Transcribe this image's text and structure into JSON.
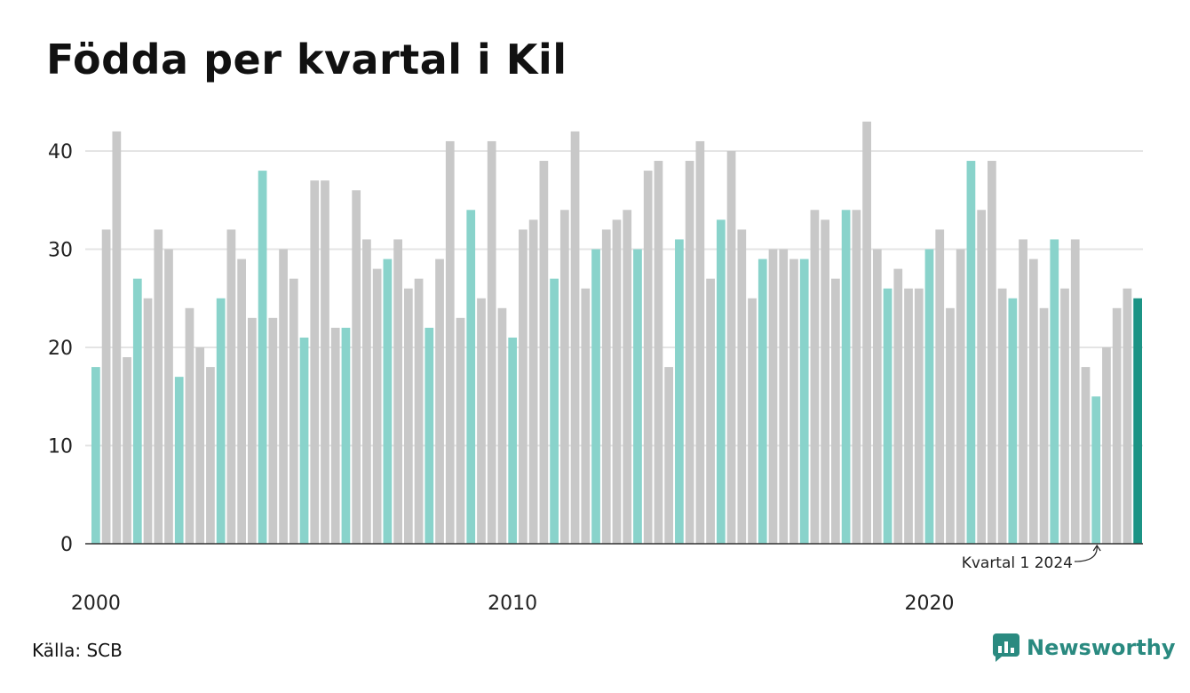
{
  "title": "Födda per kvartal i Kil",
  "source": "Källa: SCB",
  "brand": {
    "name": "Newsworthy",
    "icon": "newsworthy-logo-icon"
  },
  "colors": {
    "q1": "#89d3cb",
    "other": "#c8c8c8",
    "latest": "#1c9485",
    "brand": "#2a8a80"
  },
  "chart_data": {
    "type": "bar",
    "title": "Födda per kvartal i Kil",
    "xlabel": "",
    "ylabel": "",
    "ylim": [
      0,
      43
    ],
    "yticks": [
      0,
      10,
      20,
      30,
      40
    ],
    "xtick_labels": [
      {
        "label": "2000",
        "at_index": 0
      },
      {
        "label": "2010",
        "at_index": 40
      },
      {
        "label": "2020",
        "at_index": 80
      }
    ],
    "grid": true,
    "start_year": 2000,
    "start_quarter": 1,
    "annotation": {
      "text": "Kvartal 1 2024",
      "target_index": 96
    },
    "values": [
      18,
      32,
      42,
      19,
      27,
      25,
      32,
      30,
      17,
      24,
      20,
      18,
      25,
      32,
      29,
      23,
      38,
      23,
      30,
      27,
      21,
      37,
      37,
      22,
      22,
      36,
      31,
      28,
      29,
      31,
      26,
      27,
      22,
      29,
      41,
      23,
      34,
      25,
      41,
      24,
      21,
      32,
      33,
      39,
      27,
      34,
      42,
      26,
      30,
      32,
      33,
      34,
      30,
      38,
      39,
      18,
      31,
      39,
      41,
      27,
      33,
      40,
      32,
      25,
      29,
      30,
      30,
      29,
      29,
      34,
      33,
      27,
      34,
      34,
      43,
      30,
      26,
      28,
      26,
      26,
      30,
      32,
      24,
      30,
      39,
      34,
      39,
      26,
      25,
      31,
      29,
      24,
      31,
      26,
      31,
      18,
      15,
      20,
      24,
      26,
      25
    ]
  }
}
